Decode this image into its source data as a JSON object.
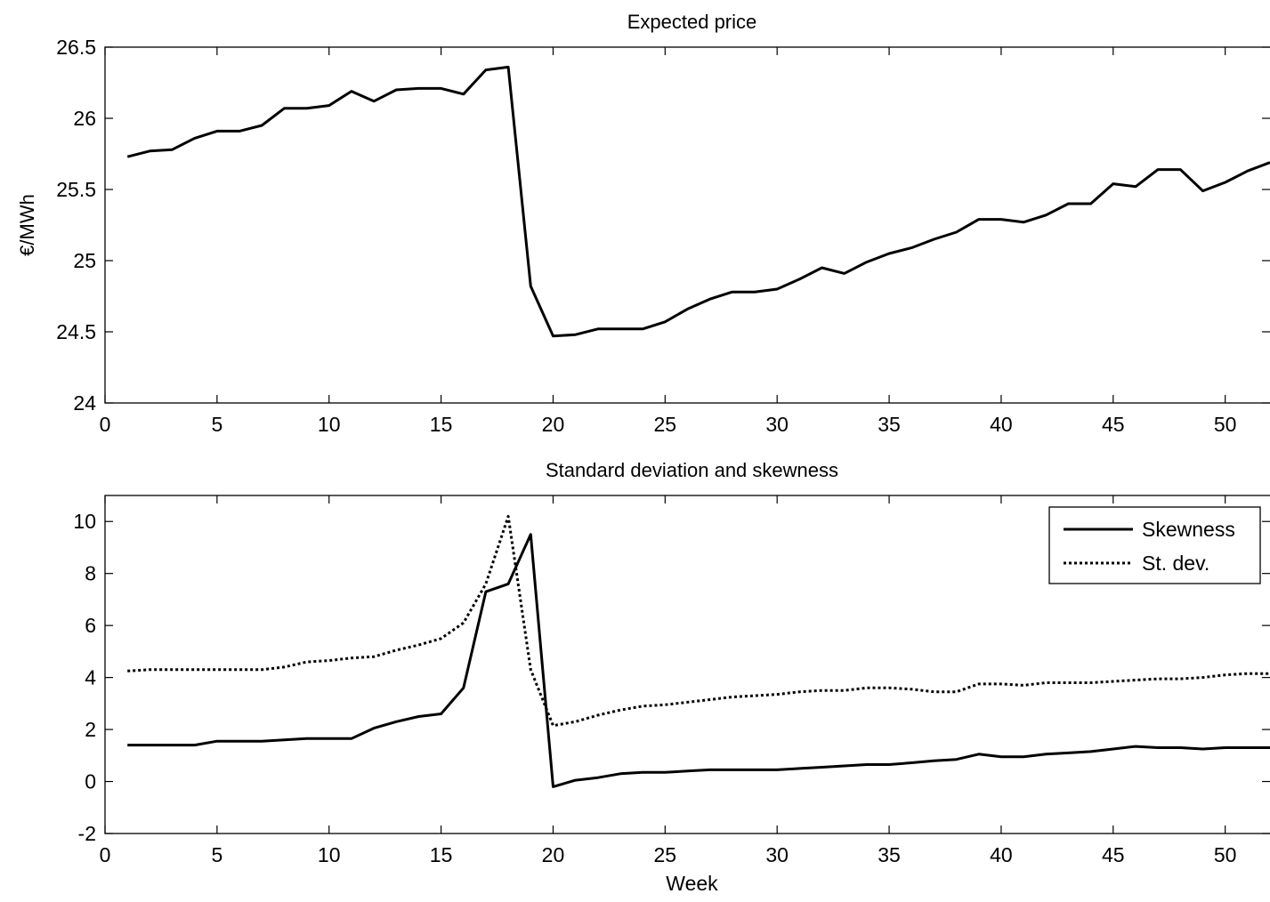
{
  "chart_data": [
    {
      "type": "line",
      "title": "Expected price",
      "xlabel": "",
      "ylabel": "€/MWh",
      "xlim": [
        0,
        52
      ],
      "ylim": [
        24,
        26.5
      ],
      "xticks": [
        0,
        5,
        10,
        15,
        20,
        25,
        30,
        35,
        40,
        45,
        50
      ],
      "yticks": [
        24,
        24.5,
        25,
        25.5,
        26,
        26.5
      ],
      "xtick_labels": [
        "0",
        "5",
        "10",
        "15",
        "20",
        "25",
        "30",
        "35",
        "40",
        "45",
        "50"
      ],
      "ytick_labels": [
        "24",
        "24.5",
        "25",
        "25.5",
        "26",
        "26.5"
      ],
      "grid": false,
      "series": [
        {
          "style": "solid",
          "x": [
            1,
            2,
            3,
            4,
            5,
            6,
            7,
            8,
            9,
            10,
            11,
            12,
            13,
            14,
            15,
            16,
            17,
            18,
            19,
            20,
            21,
            22,
            23,
            24,
            25,
            26,
            27,
            28,
            29,
            30,
            31,
            32,
            33,
            34,
            35,
            36,
            37,
            38,
            39,
            40,
            41,
            42,
            43,
            44,
            45,
            46,
            47,
            48,
            49,
            50,
            51,
            52
          ],
          "y": [
            25.73,
            25.77,
            25.78,
            25.86,
            25.91,
            25.91,
            25.95,
            26.07,
            26.07,
            26.09,
            26.19,
            26.12,
            26.2,
            26.21,
            26.21,
            26.17,
            26.34,
            26.36,
            24.82,
            24.47,
            24.48,
            24.52,
            24.52,
            24.52,
            24.57,
            24.66,
            24.73,
            24.78,
            24.78,
            24.8,
            24.87,
            24.95,
            24.91,
            24.99,
            25.05,
            25.09,
            25.15,
            25.2,
            25.29,
            25.29,
            25.27,
            25.32,
            25.4,
            25.4,
            25.54,
            25.52,
            25.64,
            25.64,
            25.49,
            25.55,
            25.63,
            25.69
          ]
        }
      ]
    },
    {
      "type": "line",
      "title": "Standard deviation and skewness",
      "xlabel": "Week",
      "ylabel": "",
      "xlim": [
        0,
        52
      ],
      "ylim": [
        -2,
        11
      ],
      "xticks": [
        0,
        5,
        10,
        15,
        20,
        25,
        30,
        35,
        40,
        45,
        50
      ],
      "yticks": [
        -2,
        0,
        2,
        4,
        6,
        8,
        10
      ],
      "xtick_labels": [
        "0",
        "5",
        "10",
        "15",
        "20",
        "25",
        "30",
        "35",
        "40",
        "45",
        "50"
      ],
      "ytick_labels": [
        "-2",
        "0",
        "2",
        "4",
        "6",
        "8",
        "10"
      ],
      "grid": false,
      "legend": "top-right",
      "series": [
        {
          "name": "Skewness",
          "style": "solid",
          "x": [
            1,
            2,
            3,
            4,
            5,
            6,
            7,
            8,
            9,
            10,
            11,
            12,
            13,
            14,
            15,
            16,
            17,
            18,
            19,
            20,
            21,
            22,
            23,
            24,
            25,
            26,
            27,
            28,
            29,
            30,
            31,
            32,
            33,
            34,
            35,
            36,
            37,
            38,
            39,
            40,
            41,
            42,
            43,
            44,
            45,
            46,
            47,
            48,
            49,
            50,
            51,
            52
          ],
          "y": [
            1.4,
            1.4,
            1.4,
            1.4,
            1.55,
            1.55,
            1.55,
            1.6,
            1.65,
            1.65,
            1.65,
            2.05,
            2.3,
            2.5,
            2.6,
            3.6,
            7.3,
            7.6,
            9.5,
            -0.2,
            0.05,
            0.15,
            0.3,
            0.35,
            0.35,
            0.4,
            0.45,
            0.45,
            0.45,
            0.45,
            0.5,
            0.55,
            0.6,
            0.65,
            0.65,
            0.72,
            0.8,
            0.85,
            1.05,
            0.95,
            0.95,
            1.05,
            1.1,
            1.15,
            1.25,
            1.35,
            1.3,
            1.3,
            1.25,
            1.3,
            1.3,
            1.3
          ]
        },
        {
          "name": "St. dev.",
          "style": "dotted",
          "x": [
            1,
            2,
            3,
            4,
            5,
            6,
            7,
            8,
            9,
            10,
            11,
            12,
            13,
            14,
            15,
            16,
            17,
            18,
            19,
            20,
            21,
            22,
            23,
            24,
            25,
            26,
            27,
            28,
            29,
            30,
            31,
            32,
            33,
            34,
            35,
            36,
            37,
            38,
            39,
            40,
            41,
            42,
            43,
            44,
            45,
            46,
            47,
            48,
            49,
            50,
            51,
            52
          ],
          "y": [
            4.25,
            4.3,
            4.3,
            4.3,
            4.3,
            4.3,
            4.3,
            4.4,
            4.6,
            4.65,
            4.75,
            4.8,
            5.05,
            5.25,
            5.5,
            6.1,
            7.6,
            10.2,
            4.3,
            2.15,
            2.3,
            2.55,
            2.75,
            2.9,
            2.95,
            3.05,
            3.15,
            3.25,
            3.3,
            3.35,
            3.45,
            3.5,
            3.5,
            3.6,
            3.6,
            3.55,
            3.45,
            3.45,
            3.75,
            3.75,
            3.7,
            3.8,
            3.8,
            3.8,
            3.85,
            3.9,
            3.95,
            3.95,
            4.0,
            4.1,
            4.15,
            4.15
          ]
        }
      ]
    }
  ]
}
